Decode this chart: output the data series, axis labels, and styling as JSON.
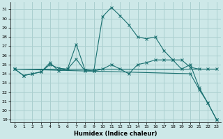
{
  "xlabel": "Humidex (Indice chaleur)",
  "background_color": "#cde8e8",
  "grid_color": "#aacfcf",
  "line_color": "#1a7070",
  "xlim": [
    -0.5,
    23.5
  ],
  "ylim": [
    18.7,
    31.8
  ],
  "xticks": [
    0,
    1,
    2,
    3,
    4,
    5,
    6,
    7,
    8,
    9,
    10,
    11,
    12,
    13,
    14,
    15,
    16,
    17,
    18,
    19,
    20,
    21,
    22,
    23
  ],
  "yticks": [
    19,
    20,
    21,
    22,
    23,
    24,
    25,
    26,
    27,
    28,
    29,
    30,
    31
  ],
  "series": [
    {
      "x": [
        0,
        1,
        2,
        3,
        4,
        5,
        6,
        7,
        8,
        9,
        10,
        11,
        12,
        13,
        14,
        15,
        16,
        17,
        18,
        19,
        20,
        21,
        22,
        23
      ],
      "y": [
        24.5,
        23.8,
        24.0,
        24.2,
        25.0,
        24.6,
        24.5,
        27.2,
        24.4,
        24.3,
        30.2,
        31.2,
        30.3,
        29.3,
        28.0,
        27.8,
        28.0,
        26.5,
        25.5,
        24.5,
        25.0,
        22.5,
        20.8,
        19.0
      ],
      "marker": true
    },
    {
      "x": [
        0,
        1,
        2,
        3,
        4,
        5,
        6,
        7,
        8,
        9,
        10,
        11,
        12,
        13,
        14,
        15,
        16,
        17,
        18,
        19,
        20,
        21,
        22,
        23
      ],
      "y": [
        24.5,
        23.8,
        24.0,
        24.2,
        25.2,
        24.3,
        24.5,
        25.6,
        24.3,
        24.3,
        24.5,
        25.0,
        24.5,
        24.0,
        25.0,
        25.2,
        25.5,
        25.5,
        25.5,
        25.5,
        24.7,
        24.5,
        24.5,
        24.5
      ],
      "marker": true
    },
    {
      "x": [
        0,
        23
      ],
      "y": [
        24.5,
        24.5
      ],
      "marker": false
    },
    {
      "x": [
        0,
        20,
        21,
        22,
        23
      ],
      "y": [
        24.5,
        24.0,
        22.3,
        20.8,
        19.0
      ],
      "marker": true
    }
  ]
}
